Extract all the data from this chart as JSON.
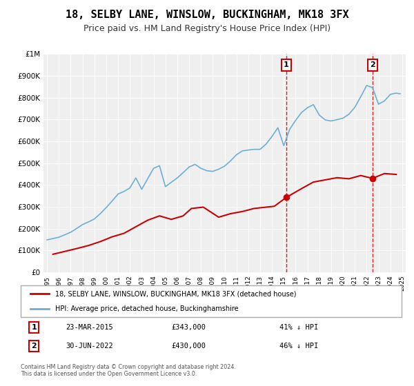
{
  "title": "18, SELBY LANE, WINSLOW, BUCKINGHAM, MK18 3FX",
  "subtitle": "Price paid vs. HM Land Registry's House Price Index (HPI)",
  "title_fontsize": 11,
  "subtitle_fontsize": 9,
  "hpi_color": "#6baed6",
  "price_color": "#cc0000",
  "plot_bg_color": "#efefef",
  "grid_color": "#ffffff",
  "ylim": [
    0,
    1000000
  ],
  "yticks": [
    0,
    100000,
    200000,
    300000,
    400000,
    500000,
    600000,
    700000,
    800000,
    900000,
    1000000
  ],
  "ytick_labels": [
    "£0",
    "£100K",
    "£200K",
    "£300K",
    "£400K",
    "£500K",
    "£600K",
    "£700K",
    "£800K",
    "£900K",
    "£1M"
  ],
  "xlim_start": 1994.7,
  "xlim_end": 2025.3,
  "xticks": [
    1995,
    1996,
    1997,
    1998,
    1999,
    2000,
    2001,
    2002,
    2003,
    2004,
    2005,
    2006,
    2007,
    2008,
    2009,
    2010,
    2011,
    2012,
    2013,
    2014,
    2015,
    2016,
    2017,
    2018,
    2019,
    2020,
    2021,
    2022,
    2023,
    2024,
    2025
  ],
  "sale1_x": 2015.22,
  "sale1_y": 343000,
  "sale1_label": "1",
  "sale1_date": "23-MAR-2015",
  "sale1_price": "£343,000",
  "sale1_hpi": "41% ↓ HPI",
  "sale2_x": 2022.49,
  "sale2_y": 430000,
  "sale2_label": "2",
  "sale2_date": "30-JUN-2022",
  "sale2_price": "£430,000",
  "sale2_hpi": "46% ↓ HPI",
  "legend_label1": "18, SELBY LANE, WINSLOW, BUCKINGHAM, MK18 3FX (detached house)",
  "legend_label2": "HPI: Average price, detached house, Buckinghamshire",
  "footer": "Contains HM Land Registry data © Crown copyright and database right 2024.\nThis data is licensed under the Open Government Licence v3.0.",
  "price_x": [
    1995.5,
    1996.5,
    1997.5,
    1998.5,
    1999.5,
    2000.5,
    2001.5,
    2002.5,
    2003.5,
    2004.5,
    2005.5,
    2006.5,
    2007.2,
    2008.2,
    2009.5,
    2010.5,
    2011.5,
    2012.5,
    2013.5,
    2014.2,
    2015.22,
    2016.5,
    2017.5,
    2018.5,
    2019.5,
    2020.5,
    2021.5,
    2022.49,
    2023.5,
    2024.5
  ],
  "price_y": [
    82000,
    95000,
    108000,
    122000,
    140000,
    162000,
    178000,
    208000,
    238000,
    258000,
    242000,
    258000,
    292000,
    298000,
    252000,
    268000,
    278000,
    292000,
    298000,
    302000,
    343000,
    383000,
    413000,
    423000,
    433000,
    428000,
    443000,
    430000,
    452000,
    448000
  ]
}
